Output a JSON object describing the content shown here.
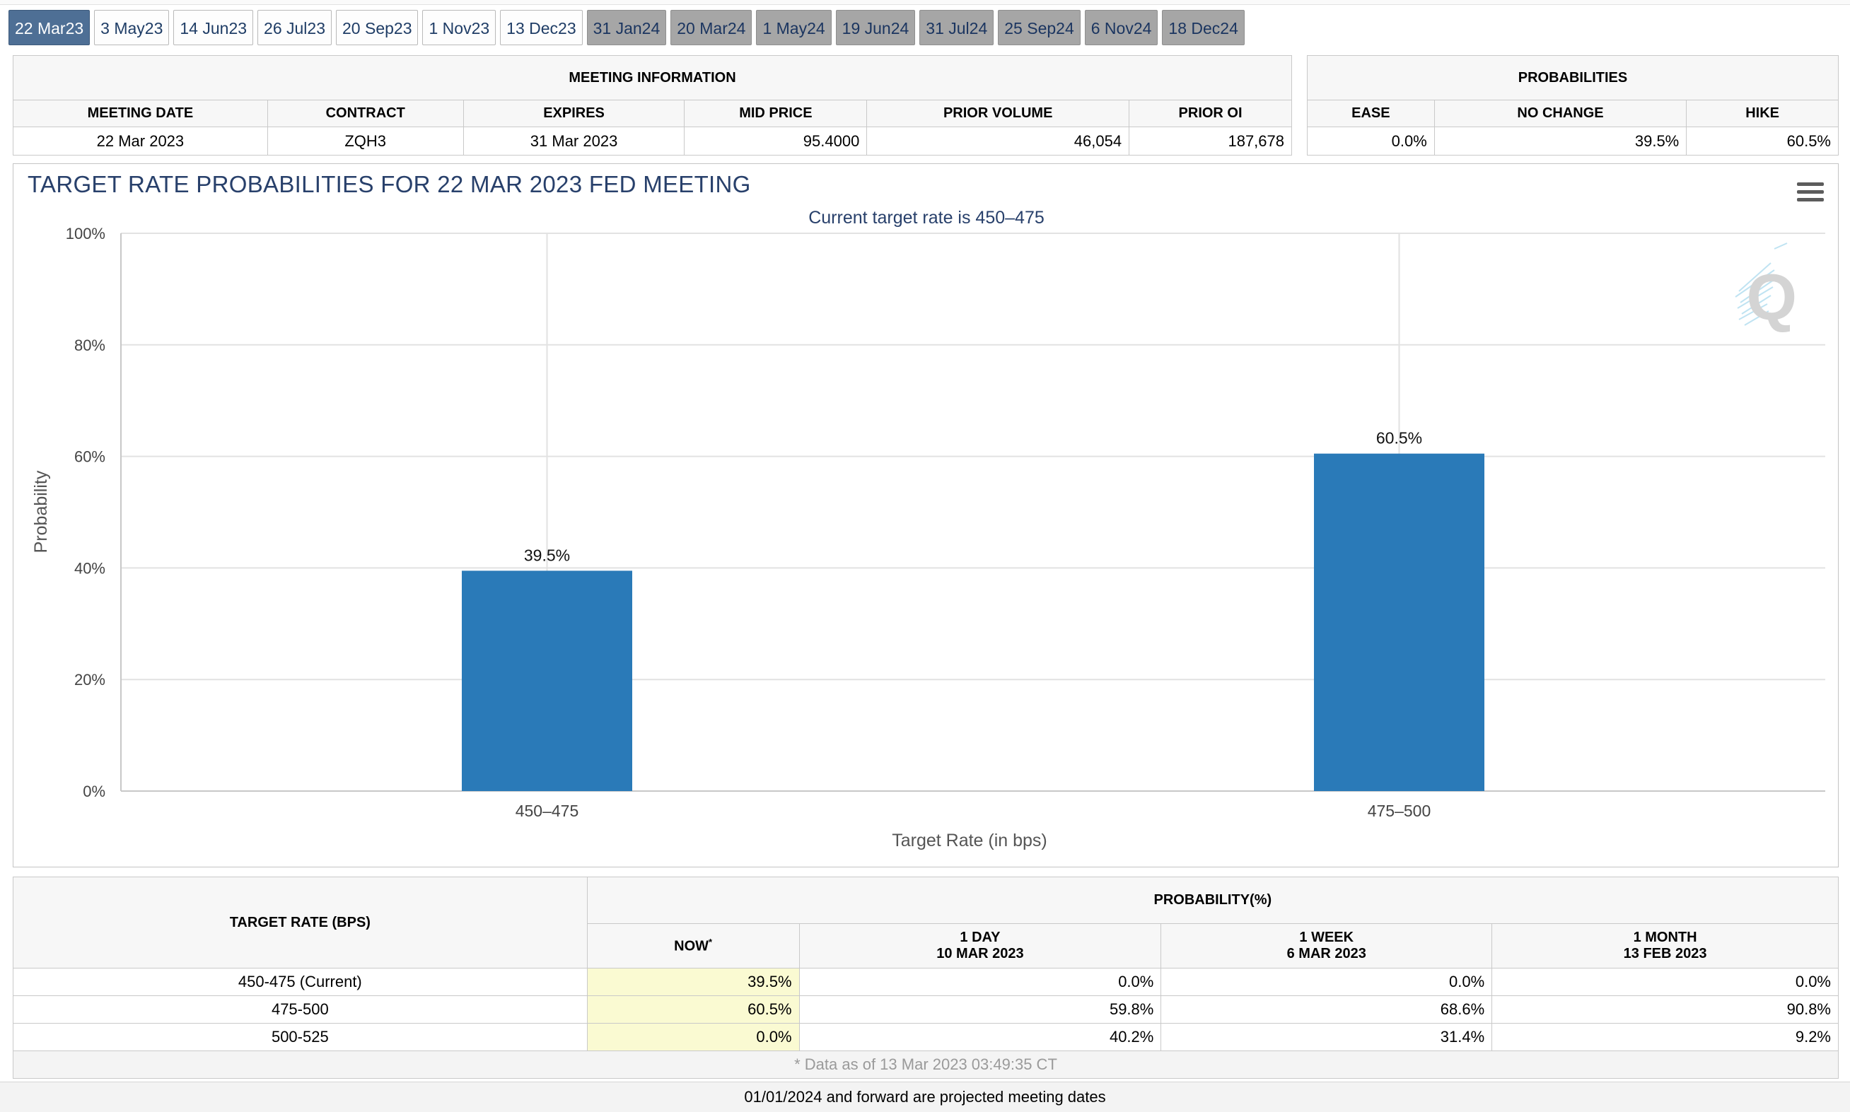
{
  "tabs": [
    {
      "label": "22 Mar23",
      "state": "active"
    },
    {
      "label": "3 May23",
      "state": "normal"
    },
    {
      "label": "14 Jun23",
      "state": "normal"
    },
    {
      "label": "26 Jul23",
      "state": "normal"
    },
    {
      "label": "20 Sep23",
      "state": "normal"
    },
    {
      "label": "1 Nov23",
      "state": "normal"
    },
    {
      "label": "13 Dec23",
      "state": "normal"
    },
    {
      "label": "31 Jan24",
      "state": "proj"
    },
    {
      "label": "20 Mar24",
      "state": "proj"
    },
    {
      "label": "1 May24",
      "state": "proj"
    },
    {
      "label": "19 Jun24",
      "state": "proj"
    },
    {
      "label": "31 Jul24",
      "state": "proj"
    },
    {
      "label": "25 Sep24",
      "state": "proj"
    },
    {
      "label": "6 Nov24",
      "state": "proj"
    },
    {
      "label": "18 Dec24",
      "state": "proj"
    }
  ],
  "meeting_info": {
    "header": "MEETING INFORMATION",
    "columns": [
      "MEETING DATE",
      "CONTRACT",
      "EXPIRES",
      "MID PRICE",
      "PRIOR VOLUME",
      "PRIOR OI"
    ],
    "values": [
      "22 Mar 2023",
      "ZQH3",
      "31 Mar 2023",
      "95.4000",
      "46,054",
      "187,678"
    ]
  },
  "probabilities": {
    "header": "PROBABILITIES",
    "columns": [
      "EASE",
      "NO CHANGE",
      "HIKE"
    ],
    "values": [
      "0.0%",
      "39.5%",
      "60.5%"
    ]
  },
  "chart": {
    "title": "TARGET RATE PROBABILITIES FOR 22 MAR 2023 FED MEETING",
    "subtitle": "Current target rate is 450–475",
    "menu_icon": "hamburger-menu-icon",
    "watermark": "Q"
  },
  "chart_data": {
    "type": "bar",
    "title": "TARGET RATE PROBABILITIES FOR 22 MAR 2023 FED MEETING",
    "subtitle": "Current target rate is 450–475",
    "categories": [
      "450–475",
      "475–500"
    ],
    "values": [
      39.5,
      60.5
    ],
    "data_labels": [
      "39.5%",
      "60.5%"
    ],
    "xlabel": "Target Rate (in bps)",
    "ylabel": "Probability",
    "ylim": [
      0,
      100
    ],
    "yticks": [
      "0%",
      "20%",
      "40%",
      "60%",
      "80%",
      "100%"
    ],
    "ytick_values": [
      0,
      20,
      40,
      60,
      80,
      100
    ],
    "grid": true,
    "bar_color": "#2a7ab8"
  },
  "prob_table": {
    "target_header": "TARGET RATE (BPS)",
    "prob_header": "PROBABILITY(%)",
    "now_header": "NOW",
    "now_marker": "*",
    "col_1day": {
      "label": "1 DAY",
      "date": "10 MAR 2023"
    },
    "col_1week": {
      "label": "1 WEEK",
      "date": "6 MAR 2023"
    },
    "col_1month": {
      "label": "1 MONTH",
      "date": "13 FEB 2023"
    },
    "rows": [
      {
        "rate": "450-475 (Current)",
        "now": "39.5%",
        "d1": "0.0%",
        "w1": "0.0%",
        "m1": "0.0%"
      },
      {
        "rate": "475-500",
        "now": "60.5%",
        "d1": "59.8%",
        "w1": "68.6%",
        "m1": "90.8%"
      },
      {
        "rate": "500-525",
        "now": "0.0%",
        "d1": "40.2%",
        "w1": "31.4%",
        "m1": "9.2%"
      }
    ],
    "footnote": "* Data as of 13 Mar 2023 03:49:35 CT"
  },
  "bottom_note": "01/01/2024 and forward are projected meeting dates"
}
